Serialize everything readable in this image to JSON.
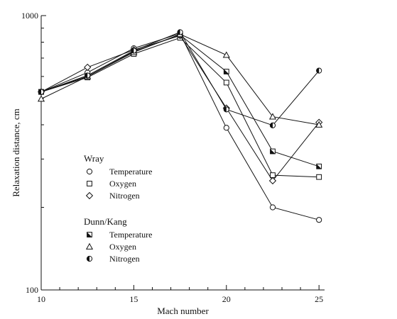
{
  "chart_data": {
    "type": "line",
    "xlabel": "Mach number",
    "ylabel": "Relaxation distance, cm",
    "xlim": [
      10,
      25.3
    ],
    "ylim": [
      100,
      1000
    ],
    "y_scale": "log",
    "grid": false,
    "x_ticks": [
      10,
      15,
      20,
      25
    ],
    "x_tick_labels": [
      "10",
      "15",
      "20",
      "25"
    ],
    "y_ticks": [
      100,
      1000
    ],
    "y_tick_labels": [
      "100",
      "1000"
    ],
    "legend_placement": "left-middle",
    "legend_groups": [
      {
        "heading": "Wray",
        "entries": [
          0,
          1,
          2
        ]
      },
      {
        "heading": "Dunn/Kang",
        "entries": [
          3,
          4,
          5
        ]
      }
    ],
    "series": [
      {
        "name": "Temperature",
        "group": "Wray",
        "marker": "circle-open",
        "x": [
          10,
          12.5,
          15,
          17.5,
          20,
          22.5,
          25
        ],
        "y": [
          527,
          620,
          760,
          860,
          390,
          200,
          180
        ]
      },
      {
        "name": "Oxygen",
        "group": "Wray",
        "marker": "square-open",
        "x": [
          10,
          12.5,
          15,
          17.5,
          20,
          22.5,
          25
        ],
        "y": [
          527,
          595,
          725,
          830,
          570,
          262,
          258
        ]
      },
      {
        "name": "Nitrogen",
        "group": "Wray",
        "marker": "diamond-open",
        "x": [
          10,
          12.5,
          15,
          17.5,
          20,
          22.5,
          25
        ],
        "y": [
          527,
          648,
          750,
          845,
          460,
          250,
          408
        ]
      },
      {
        "name": "Temperature",
        "group": "Dunn/Kang",
        "marker": "square-half",
        "x": [
          10,
          12.5,
          15,
          17.5,
          20,
          22.5,
          25
        ],
        "y": [
          527,
          600,
          740,
          850,
          625,
          320,
          282
        ]
      },
      {
        "name": "Oxygen",
        "group": "Dunn/Kang",
        "marker": "triangle-open",
        "x": [
          10,
          12.5,
          15,
          17.5,
          20,
          22.5,
          25
        ],
        "y": [
          497,
          600,
          735,
          855,
          718,
          428,
          400
        ]
      },
      {
        "name": "Nitrogen",
        "group": "Dunn/Kang",
        "marker": "circle-half",
        "x": [
          10,
          12.5,
          15,
          17.5,
          20,
          22.5,
          25
        ],
        "y": [
          527,
          605,
          745,
          870,
          455,
          398,
          630
        ]
      }
    ]
  }
}
